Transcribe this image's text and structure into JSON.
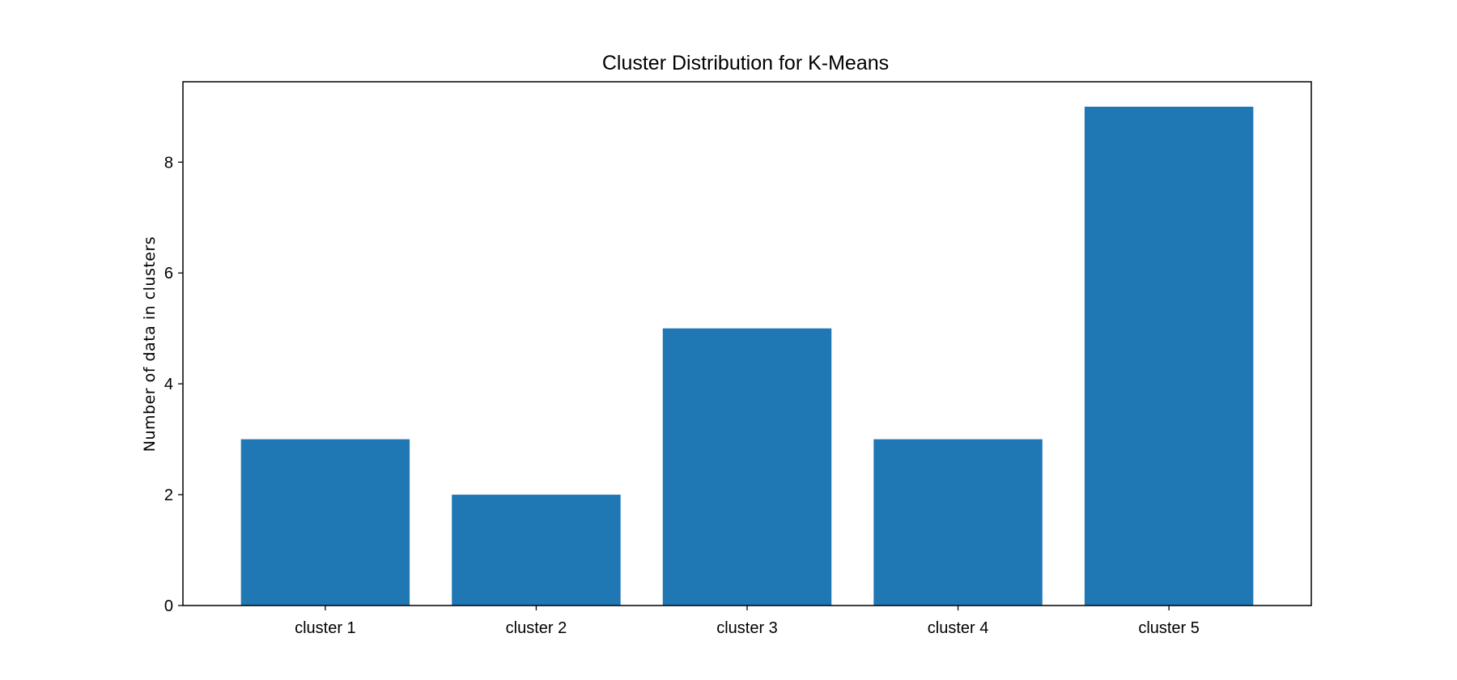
{
  "chart_data": {
    "type": "bar",
    "title": "Cluster Distribution for K-Means",
    "xlabel": "",
    "ylabel": "Number of data in clusters",
    "categories": [
      "cluster 1",
      "cluster 2",
      "cluster 3",
      "cluster 4",
      "cluster 5"
    ],
    "values": [
      3,
      2,
      5,
      3,
      9
    ],
    "ylim": [
      0,
      9.45
    ],
    "yticks": [
      0,
      2,
      4,
      6,
      8
    ],
    "grid": false,
    "legend": "none",
    "bar_color": "#1f77b4"
  }
}
